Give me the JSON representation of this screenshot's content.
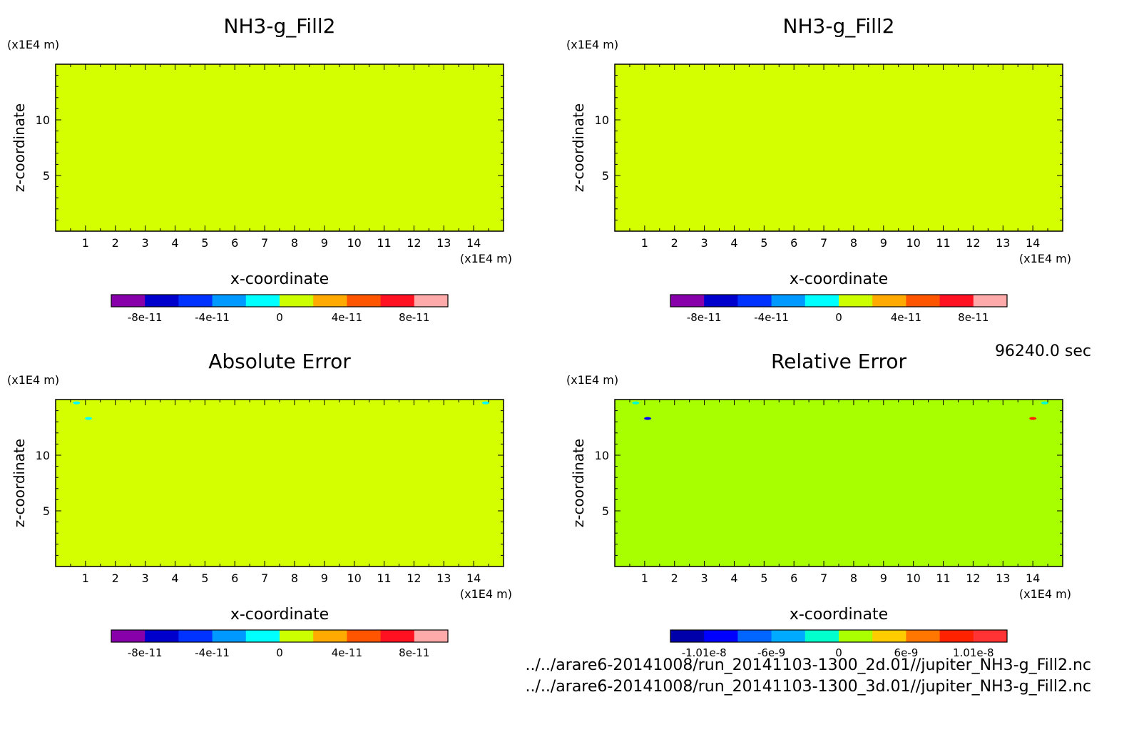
{
  "colors": {
    "fill_uniform": "#d4ff00",
    "fill_relative": "#a8ff00",
    "cbar_abs": [
      "#8800aa",
      "#0000cc",
      "#0033ff",
      "#0099ff",
      "#00ffff",
      "#ccff00",
      "#ffaa00",
      "#ff5500",
      "#ff1122",
      "#ffaaaa"
    ],
    "cbar_rel": [
      "#0000aa",
      "#0000ff",
      "#0066ff",
      "#00aaff",
      "#00ffcc",
      "#aaff00",
      "#ffcc00",
      "#ff7700",
      "#ff2200",
      "#ff3333"
    ]
  },
  "footer": {
    "time": "96240.0 sec",
    "file1": "../../arare6-20141008/run_20141103-1300_2d.01//jupiter_NH3-g_Fill2.nc",
    "file2": "../../arare6-20141008/run_20141103-1300_3d.01//jupiter_NH3-g_Fill2.nc"
  },
  "chart_data": [
    {
      "type": "heatmap",
      "title": "NH3-g_Fill2",
      "xlabel": "x-coordinate",
      "ylabel": "z-coordinate",
      "xunit": "(x1E4 m)",
      "yunit": "(x1E4 m)",
      "xlim": [
        0,
        15
      ],
      "ylim": [
        0,
        15
      ],
      "xticks": [
        "1",
        "2",
        "3",
        "4",
        "5",
        "6",
        "7",
        "8",
        "9",
        "10",
        "11",
        "12",
        "13",
        "14"
      ],
      "yticks": [
        "5",
        "10"
      ],
      "field_value": 0,
      "colorbar": {
        "levels": 10,
        "labels": [
          "-8e-11",
          "-4e-11",
          "0",
          "4e-11",
          "8e-11"
        ]
      }
    },
    {
      "type": "heatmap",
      "title": "NH3-g_Fill2",
      "xlabel": "x-coordinate",
      "ylabel": "z-coordinate",
      "xunit": "(x1E4 m)",
      "yunit": "(x1E4 m)",
      "xlim": [
        0,
        15
      ],
      "ylim": [
        0,
        15
      ],
      "xticks": [
        "1",
        "2",
        "3",
        "4",
        "5",
        "6",
        "7",
        "8",
        "9",
        "10",
        "11",
        "12",
        "13",
        "14"
      ],
      "yticks": [
        "5",
        "10"
      ],
      "field_value": 0,
      "colorbar": {
        "levels": 10,
        "labels": [
          "-8e-11",
          "-4e-11",
          "0",
          "4e-11",
          "8e-11"
        ]
      }
    },
    {
      "type": "heatmap",
      "title": "Absolute Error",
      "xlabel": "x-coordinate",
      "ylabel": "z-coordinate",
      "xunit": "(x1E4 m)",
      "yunit": "(x1E4 m)",
      "xlim": [
        0,
        15
      ],
      "ylim": [
        0,
        15
      ],
      "xticks": [
        "1",
        "2",
        "3",
        "4",
        "5",
        "6",
        "7",
        "8",
        "9",
        "10",
        "11",
        "12",
        "13",
        "14"
      ],
      "yticks": [
        "5",
        "10"
      ],
      "field_value": 0,
      "spots": [
        {
          "x": 0.7,
          "y": 14.7,
          "color": "#00ffff"
        },
        {
          "x": 1.1,
          "y": 13.3,
          "color": "#00ffff"
        },
        {
          "x": 14.4,
          "y": 14.7,
          "color": "#00ffff"
        }
      ],
      "colorbar": {
        "levels": 10,
        "labels": [
          "-8e-11",
          "-4e-11",
          "0",
          "4e-11",
          "8e-11"
        ]
      }
    },
    {
      "type": "heatmap",
      "title": "Relative Error",
      "xlabel": "x-coordinate",
      "ylabel": "z-coordinate",
      "xunit": "(x1E4 m)",
      "yunit": "(x1E4 m)",
      "xlim": [
        0,
        15
      ],
      "ylim": [
        0,
        15
      ],
      "xticks": [
        "1",
        "2",
        "3",
        "4",
        "5",
        "6",
        "7",
        "8",
        "9",
        "10",
        "11",
        "12",
        "13",
        "14"
      ],
      "yticks": [
        "5",
        "10"
      ],
      "field_value": 0,
      "spots": [
        {
          "x": 0.7,
          "y": 14.7,
          "color": "#00ffcc"
        },
        {
          "x": 1.1,
          "y": 13.3,
          "color": "#0000ff"
        },
        {
          "x": 14.0,
          "y": 13.3,
          "color": "#ff2200"
        },
        {
          "x": 14.4,
          "y": 14.7,
          "color": "#00ffcc"
        }
      ],
      "colorbar": {
        "levels": 10,
        "labels": [
          "-1.01e-8",
          "-6e-9",
          "0",
          "6e-9",
          "1.01e-8"
        ]
      }
    }
  ]
}
